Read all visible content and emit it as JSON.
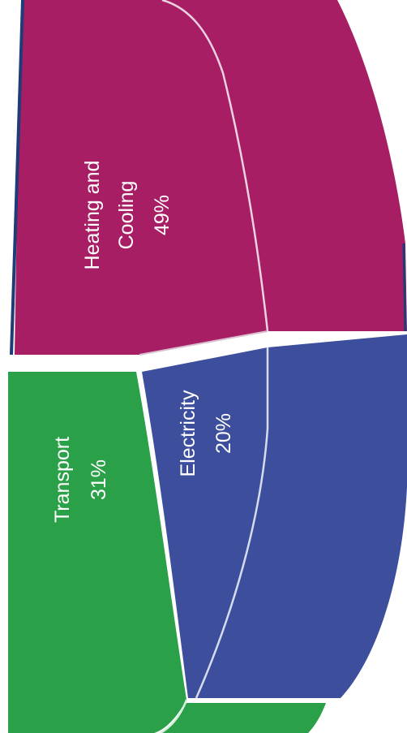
{
  "chart_data": {
    "type": "pie",
    "style": "3d-exploded",
    "orientation": "rotated-90",
    "slices": [
      {
        "label": "Heating and Cooling",
        "value": 49,
        "value_label": "49%",
        "color": "#a81e65"
      },
      {
        "label": "Transport",
        "value": 31,
        "value_label": "31%",
        "color": "#2aa148"
      },
      {
        "label": "Electricity",
        "value": 20,
        "value_label": "20%",
        "color": "#3d4f9c"
      }
    ],
    "frame_color": "#1f3c78"
  }
}
